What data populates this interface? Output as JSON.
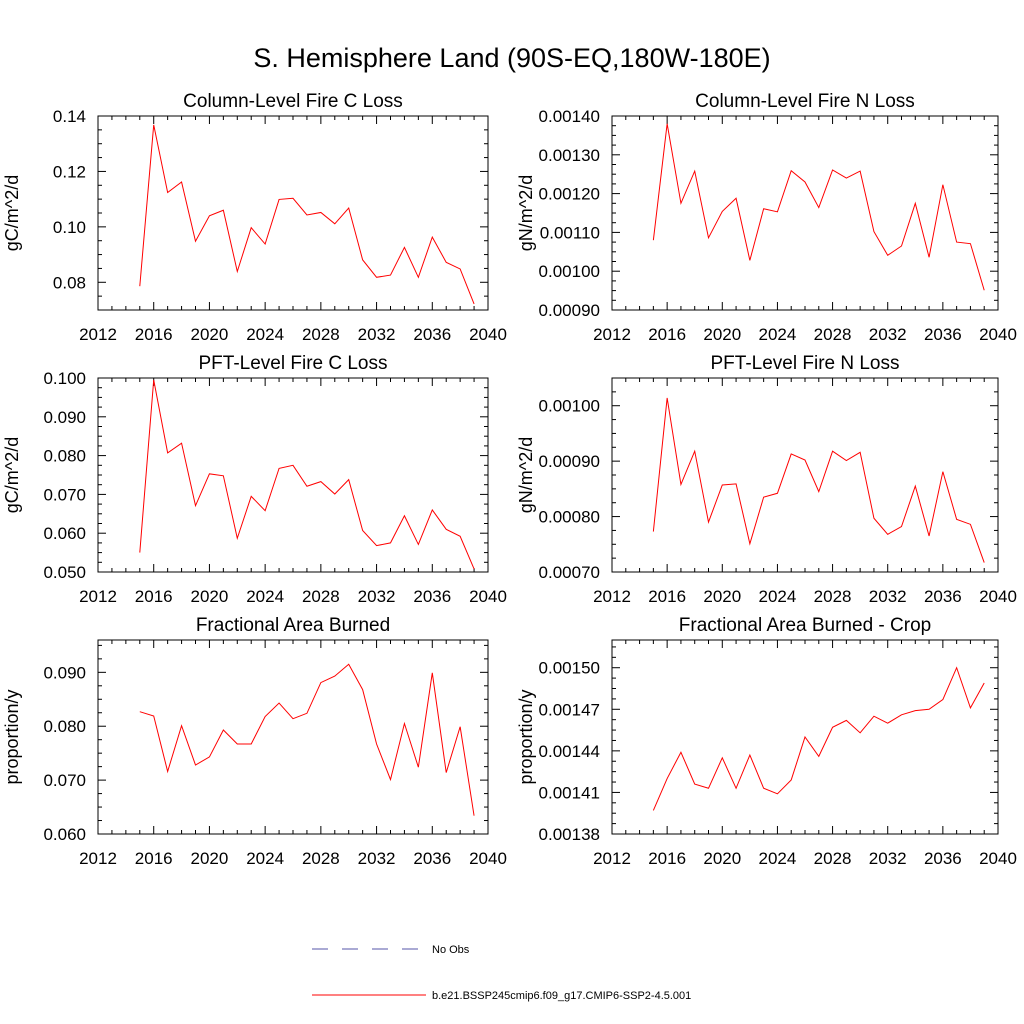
{
  "title": "S. Hemisphere Land (90S-EQ,180W-180E)",
  "chart_data": [
    {
      "type": "line",
      "title": "Column-Level Fire C Loss",
      "ylabel": "gC/m^2/d",
      "xlim": [
        2012,
        2040
      ],
      "ylim": [
        0.07,
        0.14
      ],
      "xticks": [
        2012,
        2016,
        2020,
        2024,
        2028,
        2032,
        2036,
        2040
      ],
      "xtick_labels": [
        "2012",
        "2016",
        "2020",
        "2024",
        "2028",
        "2032",
        "2036",
        "2040"
      ],
      "yticks": [
        0.08,
        0.1,
        0.12,
        0.14
      ],
      "ytick_labels": [
        "0.08",
        "0.10",
        "0.12",
        "0.14"
      ],
      "series": [
        {
          "name": "b.e21.BSSP245cmip6.f09_g17.CMIP6-SSP2-4.5.001",
          "color": "#ff0000",
          "x": [
            2015,
            2016,
            2017,
            2018,
            2019,
            2020,
            2021,
            2022,
            2023,
            2024,
            2025,
            2026,
            2027,
            2028,
            2029,
            2030,
            2031,
            2032,
            2033,
            2034,
            2035,
            2036,
            2037,
            2038,
            2039
          ],
          "y": [
            0.0786,
            0.1368,
            0.1124,
            0.1162,
            0.0948,
            0.104,
            0.106,
            0.0839,
            0.0997,
            0.0938,
            0.1099,
            0.1103,
            0.1043,
            0.1052,
            0.1011,
            0.1068,
            0.0881,
            0.0818,
            0.0826,
            0.0926,
            0.0818,
            0.0963,
            0.0872,
            0.0848,
            0.0722
          ]
        }
      ]
    },
    {
      "type": "line",
      "title": "Column-Level Fire N Loss",
      "ylabel": "gN/m^2/d",
      "xlim": [
        2012,
        2040
      ],
      "ylim": [
        0.0009,
        0.0014
      ],
      "xticks": [
        2012,
        2016,
        2020,
        2024,
        2028,
        2032,
        2036,
        2040
      ],
      "xtick_labels": [
        "2012",
        "2016",
        "2020",
        "2024",
        "2028",
        "2032",
        "2036",
        "2040"
      ],
      "yticks": [
        0.0009,
        0.001,
        0.0011,
        0.0012,
        0.0013,
        0.0014
      ],
      "ytick_labels": [
        "0.00090",
        "0.00100",
        "0.00110",
        "0.00120",
        "0.00130",
        "0.00140"
      ],
      "series": [
        {
          "name": "b.e21.BSSP245cmip6.f09_g17.CMIP6-SSP2-4.5.001",
          "color": "#ff0000",
          "x": [
            2015,
            2016,
            2017,
            2018,
            2019,
            2020,
            2021,
            2022,
            2023,
            2024,
            2025,
            2026,
            2027,
            2028,
            2029,
            2030,
            2031,
            2032,
            2033,
            2034,
            2035,
            2036,
            2037,
            2038,
            2039
          ],
          "y": [
            0.00108,
            0.00138,
            0.001175,
            0.001258,
            0.001086,
            0.001154,
            0.001188,
            0.001028,
            0.001161,
            0.001153,
            0.001259,
            0.00123,
            0.001164,
            0.001261,
            0.00124,
            0.001258,
            0.001102,
            0.001041,
            0.001065,
            0.001175,
            0.001036,
            0.001223,
            0.001075,
            0.001071,
            0.000951
          ]
        }
      ]
    },
    {
      "type": "line",
      "title": "PFT-Level Fire C Loss",
      "ylabel": "gC/m^2/d",
      "xlim": [
        2012,
        2040
      ],
      "ylim": [
        0.05,
        0.1
      ],
      "xticks": [
        2012,
        2016,
        2020,
        2024,
        2028,
        2032,
        2036,
        2040
      ],
      "xtick_labels": [
        "2012",
        "2016",
        "2020",
        "2024",
        "2028",
        "2032",
        "2036",
        "2040"
      ],
      "yticks": [
        0.05,
        0.06,
        0.07,
        0.08,
        0.09,
        0.1
      ],
      "ytick_labels": [
        "0.050",
        "0.060",
        "0.070",
        "0.080",
        "0.090",
        "0.100"
      ],
      "series": [
        {
          "name": "b.e21.BSSP245cmip6.f09_g17.CMIP6-SSP2-4.5.001",
          "color": "#ff0000",
          "x": [
            2015,
            2016,
            2017,
            2018,
            2019,
            2020,
            2021,
            2022,
            2023,
            2024,
            2025,
            2026,
            2027,
            2028,
            2029,
            2030,
            2031,
            2032,
            2033,
            2034,
            2035,
            2036,
            2037,
            2038,
            2039
          ],
          "y": [
            0.055,
            0.0995,
            0.0807,
            0.0832,
            0.0671,
            0.0753,
            0.0748,
            0.0587,
            0.0695,
            0.0658,
            0.0767,
            0.0775,
            0.0721,
            0.0733,
            0.0701,
            0.0738,
            0.0607,
            0.0568,
            0.0575,
            0.0645,
            0.0571,
            0.066,
            0.061,
            0.0592,
            0.0508
          ]
        }
      ]
    },
    {
      "type": "line",
      "title": "PFT-Level Fire N Loss",
      "ylabel": "gN/m^2/d",
      "xlim": [
        2012,
        2040
      ],
      "ylim": [
        0.0007,
        0.00105
      ],
      "xticks": [
        2012,
        2016,
        2020,
        2024,
        2028,
        2032,
        2036,
        2040
      ],
      "xtick_labels": [
        "2012",
        "2016",
        "2020",
        "2024",
        "2028",
        "2032",
        "2036",
        "2040"
      ],
      "yticks": [
        0.0007,
        0.0008,
        0.0009,
        0.001
      ],
      "ytick_labels": [
        "0.00070",
        "0.00080",
        "0.00090",
        "0.00100"
      ],
      "series": [
        {
          "name": "b.e21.BSSP245cmip6.f09_g17.CMIP6-SSP2-4.5.001",
          "color": "#ff0000",
          "x": [
            2015,
            2016,
            2017,
            2018,
            2019,
            2020,
            2021,
            2022,
            2023,
            2024,
            2025,
            2026,
            2027,
            2028,
            2029,
            2030,
            2031,
            2032,
            2033,
            2034,
            2035,
            2036,
            2037,
            2038,
            2039
          ],
          "y": [
            0.000773,
            0.001014,
            0.000858,
            0.000918,
            0.00079,
            0.000857,
            0.000859,
            0.000751,
            0.000835,
            0.000842,
            0.000913,
            0.000902,
            0.000845,
            0.000918,
            0.000901,
            0.000916,
            0.000797,
            0.000768,
            0.000782,
            0.000855,
            0.000765,
            0.000881,
            0.000795,
            0.000786,
            0.000717
          ]
        }
      ]
    },
    {
      "type": "line",
      "title": "Fractional Area Burned",
      "ylabel": "proportion/y",
      "xlim": [
        2012,
        2040
      ],
      "ylim": [
        0.06,
        0.096
      ],
      "xticks": [
        2012,
        2016,
        2020,
        2024,
        2028,
        2032,
        2036,
        2040
      ],
      "xtick_labels": [
        "2012",
        "2016",
        "2020",
        "2024",
        "2028",
        "2032",
        "2036",
        "2040"
      ],
      "yticks": [
        0.06,
        0.07,
        0.08,
        0.09
      ],
      "ytick_labels": [
        "0.060",
        "0.070",
        "0.080",
        "0.090"
      ],
      "series": [
        {
          "name": "b.e21.BSSP245cmip6.f09_g17.CMIP6-SSP2-4.5.001",
          "color": "#ff0000",
          "x": [
            2015,
            2016,
            2017,
            2018,
            2019,
            2020,
            2021,
            2022,
            2023,
            2024,
            2025,
            2026,
            2027,
            2028,
            2029,
            2030,
            2031,
            2032,
            2033,
            2034,
            2035,
            2036,
            2037,
            2038,
            2039
          ],
          "y": [
            0.0827,
            0.0819,
            0.0716,
            0.0801,
            0.0728,
            0.0743,
            0.0793,
            0.0767,
            0.0767,
            0.0818,
            0.0843,
            0.0814,
            0.0824,
            0.0881,
            0.0893,
            0.0915,
            0.0868,
            0.0767,
            0.0701,
            0.0805,
            0.0724,
            0.0899,
            0.0714,
            0.0799,
            0.0634
          ]
        }
      ]
    },
    {
      "type": "line",
      "title": "Fractional Area Burned - Crop",
      "ylabel": "proportion/y",
      "xlim": [
        2012,
        2040
      ],
      "ylim": [
        0.00138,
        0.00152
      ],
      "xticks": [
        2012,
        2016,
        2020,
        2024,
        2028,
        2032,
        2036,
        2040
      ],
      "xtick_labels": [
        "2012",
        "2016",
        "2020",
        "2024",
        "2028",
        "2032",
        "2036",
        "2040"
      ],
      "yticks": [
        0.00138,
        0.00141,
        0.00144,
        0.00147,
        0.0015
      ],
      "ytick_labels": [
        "0.00138",
        "0.00141",
        "0.00144",
        "0.00147",
        "0.00150"
      ],
      "series": [
        {
          "name": "b.e21.BSSP245cmip6.f09_g17.CMIP6-SSP2-4.5.001",
          "color": "#ff0000",
          "x": [
            2015,
            2016,
            2017,
            2018,
            2019,
            2020,
            2021,
            2022,
            2023,
            2024,
            2025,
            2026,
            2027,
            2028,
            2029,
            2030,
            2031,
            2032,
            2033,
            2034,
            2035,
            2036,
            2037,
            2038,
            2039
          ],
          "y": [
            0.001397,
            0.00142,
            0.001439,
            0.001416,
            0.001413,
            0.001435,
            0.001413,
            0.001437,
            0.001413,
            0.001409,
            0.001419,
            0.00145,
            0.001436,
            0.001457,
            0.001462,
            0.001453,
            0.001465,
            0.00146,
            0.001466,
            0.001469,
            0.00147,
            0.001477,
            0.0015,
            0.001471,
            0.001489
          ]
        }
      ]
    }
  ],
  "legend": [
    {
      "label": "No Obs",
      "color": "#5555aa",
      "style": "dashed"
    },
    {
      "label": "b.e21.BSSP245cmip6.f09_g17.CMIP6-SSP2-4.5.001",
      "color": "#ff0000",
      "style": "solid"
    }
  ]
}
